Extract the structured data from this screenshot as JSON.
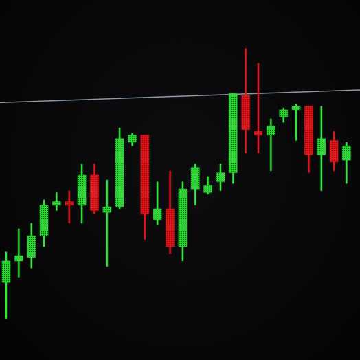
{
  "colors": {
    "background": "#070708",
    "up": "#33e63a",
    "down": "#e8191c",
    "reference_line": "#9fb6c4"
  },
  "chart_data": {
    "type": "candlestick",
    "ylim": [
      0,
      100
    ],
    "grid": false,
    "reference_line": {
      "start": 71.5,
      "end": 75.0
    },
    "candles": [
      {
        "open": 21.5,
        "close": 27.5,
        "high": 30.0,
        "low": 11.5,
        "dir": "up"
      },
      {
        "open": 27.5,
        "close": 29.0,
        "high": 36.5,
        "low": 23.0,
        "dir": "up"
      },
      {
        "open": 28.5,
        "close": 34.5,
        "high": 38.0,
        "low": 25.5,
        "dir": "up"
      },
      {
        "open": 34.5,
        "close": 43.0,
        "high": 44.5,
        "low": 31.5,
        "dir": "up"
      },
      {
        "open": 43.0,
        "close": 44.0,
        "high": 46.5,
        "low": 41.5,
        "dir": "up"
      },
      {
        "open": 44.0,
        "close": 43.0,
        "high": 47.0,
        "low": 38.0,
        "dir": "down"
      },
      {
        "open": 43.0,
        "close": 51.5,
        "high": 54.5,
        "low": 38.0,
        "dir": "up"
      },
      {
        "open": 51.5,
        "close": 41.5,
        "high": 54.5,
        "low": 40.5,
        "dir": "down"
      },
      {
        "open": 41.0,
        "close": 42.5,
        "high": 50.0,
        "low": 26.0,
        "dir": "up"
      },
      {
        "open": 42.5,
        "close": 61.5,
        "high": 64.5,
        "low": 42.0,
        "dir": "up"
      },
      {
        "open": 60.5,
        "close": 62.5,
        "high": 63.0,
        "low": 59.5,
        "dir": "up"
      },
      {
        "open": 62.5,
        "close": 40.5,
        "high": 62.5,
        "low": 33.5,
        "dir": "down"
      },
      {
        "open": 39.0,
        "close": 42.0,
        "high": 49.5,
        "low": 37.5,
        "dir": "up"
      },
      {
        "open": 42.0,
        "close": 31.5,
        "high": 52.5,
        "low": 29.5,
        "dir": "down"
      },
      {
        "open": 31.5,
        "close": 47.5,
        "high": 49.5,
        "low": 27.5,
        "dir": "up"
      },
      {
        "open": 47.5,
        "close": 53.5,
        "high": 54.5,
        "low": 43.0,
        "dir": "up"
      },
      {
        "open": 46.5,
        "close": 48.5,
        "high": 51.0,
        "low": 46.0,
        "dir": "up"
      },
      {
        "open": 49.5,
        "close": 52.0,
        "high": 54.5,
        "low": 47.0,
        "dir": "up"
      },
      {
        "open": 52.0,
        "close": 74.0,
        "high": 74.0,
        "low": 49.0,
        "dir": "up"
      },
      {
        "open": 73.5,
        "close": 64.0,
        "high": 86.5,
        "low": 57.5,
        "dir": "down"
      },
      {
        "open": 63.5,
        "close": 62.5,
        "high": 82.5,
        "low": 57.5,
        "dir": "down"
      },
      {
        "open": 62.5,
        "close": 65.0,
        "high": 67.0,
        "low": 52.5,
        "dir": "up"
      },
      {
        "open": 67.5,
        "close": 69.5,
        "high": 70.0,
        "low": 66.0,
        "dir": "up"
      },
      {
        "open": 69.5,
        "close": 70.5,
        "high": 71.0,
        "low": 61.0,
        "dir": "up"
      },
      {
        "open": 70.5,
        "close": 57.0,
        "high": 70.5,
        "low": 52.0,
        "dir": "down"
      },
      {
        "open": 57.0,
        "close": 61.5,
        "high": 70.5,
        "low": 47.0,
        "dir": "up"
      },
      {
        "open": 61.0,
        "close": 55.0,
        "high": 63.5,
        "low": 52.5,
        "dir": "down"
      },
      {
        "open": 55.5,
        "close": 59.5,
        "high": 60.5,
        "low": 49.0,
        "dir": "up"
      }
    ]
  }
}
